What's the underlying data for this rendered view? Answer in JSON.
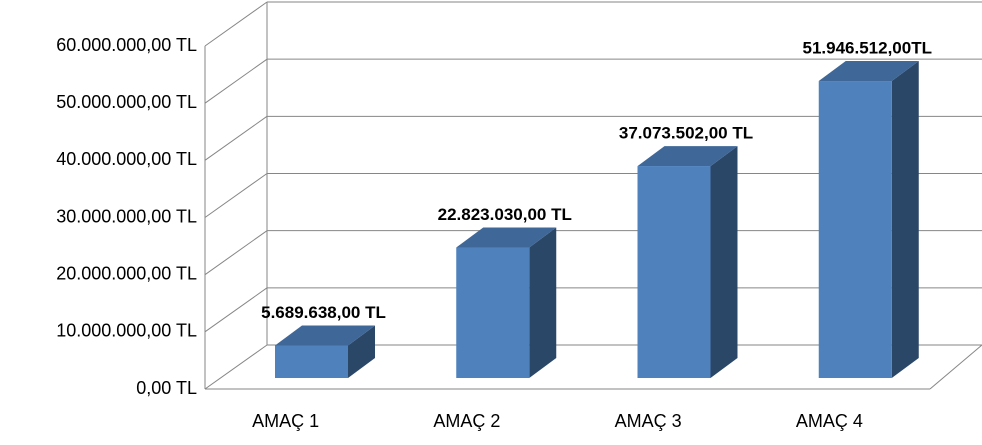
{
  "chart_data": {
    "type": "bar3d",
    "categories": [
      "AMAÇ 1",
      "AMAÇ 2",
      "AMAÇ 3",
      "AMAÇ 4"
    ],
    "values": [
      5689638,
      22823030,
      37073502,
      51946512
    ],
    "value_labels": [
      "5.689.638,00 TL",
      "22.823.030,00 TL",
      "37.073.502,00 TL",
      "51.946.512,00TL"
    ],
    "color": "#4f81bd",
    "ylim": [
      0,
      60000000
    ],
    "yticks": [
      {
        "value": 0,
        "label": "0,00 TL"
      },
      {
        "value": 10000000,
        "label": "10.000.000,00 TL"
      },
      {
        "value": 20000000,
        "label": "20.000.000,00 TL"
      },
      {
        "value": 30000000,
        "label": "30.000.000,00 TL"
      },
      {
        "value": 40000000,
        "label": "40.000.000,00 TL"
      },
      {
        "value": 50000000,
        "label": "50.000.000,00 TL"
      },
      {
        "value": 60000000,
        "label": "60.000.000,00 TL"
      }
    ],
    "grid": true
  }
}
